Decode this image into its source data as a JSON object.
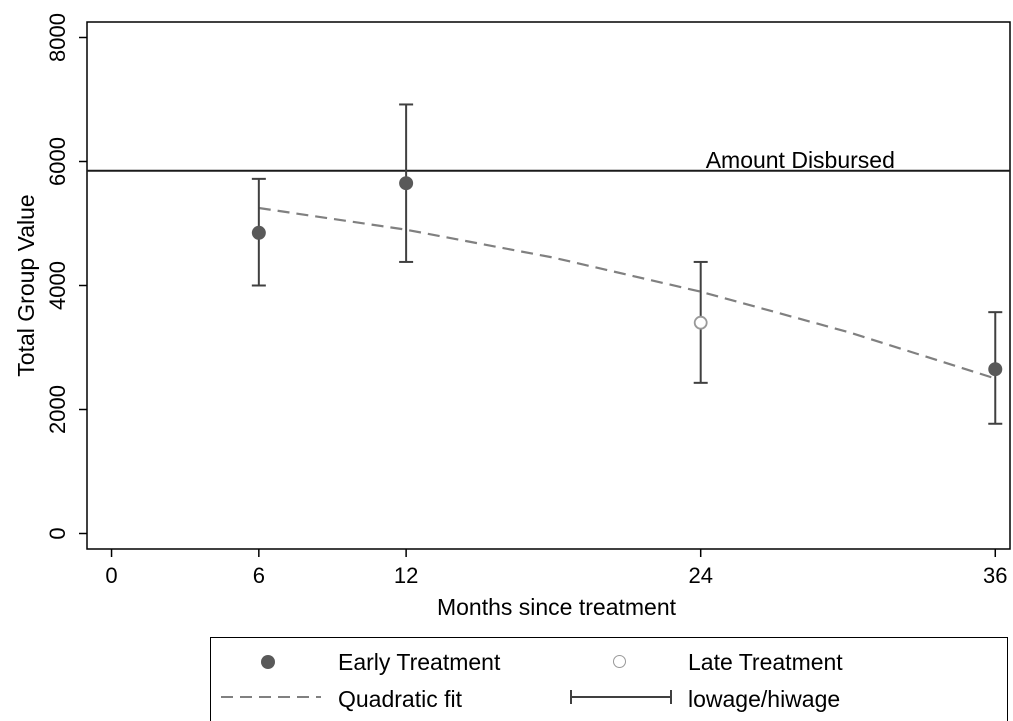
{
  "chart_data": {
    "type": "scatter",
    "title": "",
    "xlabel": "Months since treatment",
    "ylabel": "Total Group Value",
    "xlim": [
      -1,
      36.6
    ],
    "ylim": [
      -250,
      8250
    ],
    "x_ticks": [
      0,
      6,
      12,
      24,
      36
    ],
    "y_ticks": [
      0,
      2000,
      4000,
      6000,
      8000
    ],
    "grid": false,
    "legend_position": "bottom",
    "reference_line": {
      "y": 5850,
      "label": "Amount Disbursed"
    },
    "series": [
      {
        "name": "Early Treatment",
        "kind": "marker-filled",
        "color": "#595959",
        "points": [
          {
            "x": 6,
            "y": 4850
          },
          {
            "x": 12,
            "y": 5650
          },
          {
            "x": 36,
            "y": 2650
          }
        ]
      },
      {
        "name": "Late Treatment",
        "kind": "marker-hollow",
        "color": "#999999",
        "points": [
          {
            "x": 24,
            "y": 3400
          }
        ]
      },
      {
        "name": "Quadratic fit",
        "kind": "dashed-line",
        "color": "#808080",
        "points": [
          {
            "x": 6,
            "y": 5250
          },
          {
            "x": 12,
            "y": 4900
          },
          {
            "x": 18,
            "y": 4450
          },
          {
            "x": 24,
            "y": 3900
          },
          {
            "x": 30,
            "y": 3250
          },
          {
            "x": 36,
            "y": 2500
          }
        ]
      },
      {
        "name": "lowage/hiwage",
        "kind": "error-bars",
        "color": "#404040",
        "points": [
          {
            "x": 6,
            "low": 4000,
            "high": 5720
          },
          {
            "x": 12,
            "low": 4380,
            "high": 6920
          },
          {
            "x": 24,
            "low": 2430,
            "high": 4380
          },
          {
            "x": 36,
            "low": 1770,
            "high": 3570
          }
        ]
      }
    ]
  }
}
